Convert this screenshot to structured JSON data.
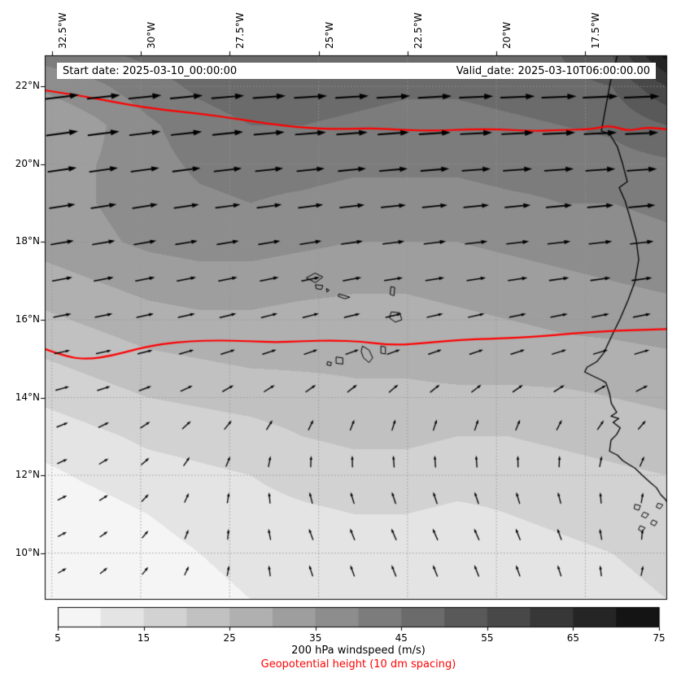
{
  "figure": {
    "annotations": {
      "start_date": "Start date: 2025-03-10_00:00:00",
      "valid_date": "Valid_date: 2025-03-10T06:00:00.00"
    }
  },
  "chart_data": {
    "type": "heatmap",
    "subtype": "filled-contour-windspeed-with-wind-vectors",
    "title": "",
    "x_label": "",
    "y_label": "",
    "map_extent": {
      "lon_min": -32.7,
      "lon_max": -15.2,
      "lat_min": 8.8,
      "lat_max": 22.8
    },
    "x_ticks": [
      {
        "value": -32.5,
        "label": "32.5°W"
      },
      {
        "value": -30.0,
        "label": "30°W"
      },
      {
        "value": -27.5,
        "label": "27.5°W"
      },
      {
        "value": -25.0,
        "label": "25°W"
      },
      {
        "value": -22.5,
        "label": "22.5°W"
      },
      {
        "value": -20.0,
        "label": "20°W"
      },
      {
        "value": -17.5,
        "label": "17.5°W"
      }
    ],
    "y_ticks": [
      {
        "value": 22,
        "label": "22°N"
      },
      {
        "value": 20,
        "label": "20°N"
      },
      {
        "value": 18,
        "label": "18°N"
      },
      {
        "value": 16,
        "label": "16°N"
      },
      {
        "value": 14,
        "label": "14°N"
      },
      {
        "value": 12,
        "label": "12°N"
      },
      {
        "value": 10,
        "label": "10°N"
      }
    ],
    "grid_lines": true,
    "colormap": {
      "name": "greys",
      "vmin": 5,
      "vmax": 75,
      "band_step": 5,
      "light_gray": 245,
      "dark_gray": 20
    },
    "colorbar": {
      "ticks": [
        5,
        15,
        25,
        35,
        45,
        55,
        65,
        75
      ],
      "label": "200 hPa windspeed (m/s)"
    },
    "windspeed_grid_mps": {
      "lons": [
        -32.7,
        -31.25,
        -29.8,
        -28.35,
        -26.9,
        -25.45,
        -24.0,
        -22.55,
        -21.1,
        -19.65,
        -18.2,
        -16.75,
        -15.2
      ],
      "lats": [
        8.8,
        10,
        11,
        12,
        13,
        14,
        15,
        16,
        17,
        18,
        19,
        20,
        21,
        22,
        22.8
      ],
      "values": [
        [
          5,
          6,
          7,
          9,
          10,
          11,
          12,
          12,
          11,
          12,
          13,
          14,
          15
        ],
        [
          6,
          7,
          8,
          10,
          11,
          12,
          13,
          13,
          12,
          13,
          14,
          15,
          16
        ],
        [
          7,
          8,
          10,
          12,
          13,
          14,
          15,
          15,
          14,
          15,
          16,
          17,
          18
        ],
        [
          9,
          11,
          13,
          14,
          15,
          17,
          18,
          18,
          17,
          17,
          18,
          19,
          20
        ],
        [
          12,
          14,
          16,
          17,
          18,
          20,
          21,
          21,
          20,
          20,
          21,
          22,
          23
        ],
        [
          16,
          18,
          20,
          21,
          22,
          23,
          24,
          24,
          24,
          24,
          24,
          25,
          26
        ],
        [
          20,
          22,
          24,
          25,
          26,
          26,
          26,
          26,
          27,
          27,
          28,
          28,
          29
        ],
        [
          24,
          26,
          28,
          29,
          29,
          28,
          28,
          28,
          29,
          30,
          31,
          32,
          33
        ],
        [
          28,
          30,
          32,
          33,
          33,
          32,
          31,
          31,
          32,
          33,
          34,
          35,
          36
        ],
        [
          32,
          34,
          36,
          37,
          37,
          36,
          35,
          35,
          35,
          36,
          37,
          38,
          39
        ],
        [
          33,
          35,
          37,
          39,
          40,
          39,
          38,
          38,
          38,
          39,
          40,
          40,
          41
        ],
        [
          32,
          35,
          38,
          41,
          42,
          42,
          41,
          41,
          41,
          42,
          42,
          43,
          44
        ],
        [
          30,
          34,
          39,
          43,
          45,
          45,
          44,
          43,
          43,
          44,
          45,
          46,
          50
        ],
        [
          36,
          39,
          43,
          46,
          48,
          48,
          47,
          46,
          46,
          47,
          48,
          50,
          60
        ],
        [
          42,
          44,
          46,
          48,
          50,
          50,
          49,
          48,
          48,
          49,
          50,
          55,
          72
        ]
      ]
    },
    "wind_uv_grid_mps": {
      "lons": [
        -33,
        -30.5,
        -28,
        -25.5,
        -23,
        -20.5,
        -18,
        -15.5
      ],
      "lats": [
        9,
        11,
        13,
        15,
        17,
        19,
        21,
        23
      ],
      "u": [
        [
          4,
          3,
          2,
          -2,
          -3,
          -3,
          -2,
          2
        ],
        [
          5,
          4,
          1,
          -3,
          -4,
          -4,
          -3,
          1
        ],
        [
          8,
          6,
          4,
          2,
          1,
          1,
          2,
          4
        ],
        [
          14,
          13,
          12,
          11,
          10,
          11,
          12,
          13
        ],
        [
          22,
          21,
          20,
          19,
          19,
          20,
          21,
          22
        ],
        [
          32,
          31,
          30,
          30,
          30,
          31,
          32,
          33
        ],
        [
          42,
          41,
          40,
          40,
          41,
          42,
          43,
          44
        ],
        [
          46,
          45,
          45,
          46,
          47,
          48,
          50,
          52
        ]
      ],
      "v": [
        [
          2,
          3,
          5,
          7,
          8,
          8,
          7,
          5
        ],
        [
          2,
          3,
          6,
          8,
          9,
          9,
          8,
          6
        ],
        [
          3,
          4,
          6,
          7,
          8,
          8,
          7,
          6
        ],
        [
          3,
          3,
          4,
          4,
          4,
          4,
          4,
          4
        ],
        [
          4,
          4,
          4,
          4,
          3,
          3,
          3,
          3
        ],
        [
          5,
          5,
          4,
          4,
          3,
          3,
          3,
          3
        ],
        [
          6,
          5,
          4,
          3,
          3,
          2,
          2,
          2
        ],
        [
          5,
          4,
          3,
          2,
          2,
          2,
          2,
          2
        ]
      ]
    },
    "quiver_points": {
      "lon_start": -32.2,
      "lon_step": 1.164,
      "cols": 15,
      "lat_start": 9.55,
      "lat_step": 0.937,
      "rows": 14
    },
    "geopotential_contours": {
      "color": "#ff0000",
      "label": "Geopotential height (10 dm spacing)",
      "lines": [
        [
          [
            -32.7,
            21.9
          ],
          [
            -31.6,
            21.75
          ],
          [
            -30.5,
            21.55
          ],
          [
            -29.4,
            21.4
          ],
          [
            -28.3,
            21.3
          ],
          [
            -27.2,
            21.15
          ],
          [
            -26.1,
            21.0
          ],
          [
            -25.3,
            20.93
          ],
          [
            -24.4,
            20.9
          ],
          [
            -23.5,
            20.93
          ],
          [
            -22.6,
            20.88
          ],
          [
            -21.7,
            20.86
          ],
          [
            -20.8,
            20.9
          ],
          [
            -19.9,
            20.9
          ],
          [
            -19.0,
            20.85
          ],
          [
            -18.1,
            20.88
          ],
          [
            -17.3,
            20.9
          ],
          [
            -16.8,
            21.0
          ],
          [
            -16.3,
            20.85
          ],
          [
            -15.8,
            20.95
          ],
          [
            -15.2,
            20.9
          ]
        ],
        [
          [
            -32.7,
            15.25
          ],
          [
            -32.1,
            15.05
          ],
          [
            -31.5,
            14.98
          ],
          [
            -30.8,
            15.08
          ],
          [
            -30.1,
            15.25
          ],
          [
            -29.4,
            15.38
          ],
          [
            -28.6,
            15.45
          ],
          [
            -27.8,
            15.47
          ],
          [
            -27.0,
            15.45
          ],
          [
            -26.2,
            15.42
          ],
          [
            -25.4,
            15.45
          ],
          [
            -24.6,
            15.47
          ],
          [
            -23.8,
            15.44
          ],
          [
            -23.0,
            15.35
          ],
          [
            -22.2,
            15.38
          ],
          [
            -21.4,
            15.46
          ],
          [
            -20.6,
            15.5
          ],
          [
            -19.8,
            15.52
          ],
          [
            -19.0,
            15.56
          ],
          [
            -18.2,
            15.62
          ],
          [
            -17.4,
            15.68
          ],
          [
            -16.6,
            15.72
          ],
          [
            -15.9,
            15.74
          ],
          [
            -15.2,
            15.76
          ]
        ]
      ]
    },
    "coastline_color": "#000000",
    "coastline": [
      [
        -16.6,
        22.8
      ],
      [
        -16.7,
        22.45
      ],
      [
        -16.8,
        22.1
      ],
      [
        -16.88,
        21.7
      ],
      [
        -16.98,
        21.2
      ],
      [
        -17.05,
        20.85
      ],
      [
        -16.82,
        20.78
      ],
      [
        -16.6,
        20.45
      ],
      [
        -16.45,
        20.0
      ],
      [
        -16.32,
        19.55
      ],
      [
        -16.55,
        19.4
      ],
      [
        -16.38,
        19.05
      ],
      [
        -16.22,
        18.55
      ],
      [
        -16.07,
        18.05
      ],
      [
        -16.0,
        17.55
      ],
      [
        -16.1,
        17.0
      ],
      [
        -16.3,
        16.5
      ],
      [
        -16.52,
        16.03
      ],
      [
        -16.75,
        15.6
      ],
      [
        -16.98,
        15.15
      ],
      [
        -17.18,
        14.92
      ],
      [
        -17.45,
        14.78
      ],
      [
        -17.52,
        14.66
      ],
      [
        -17.28,
        14.55
      ],
      [
        -17.05,
        14.45
      ],
      [
        -16.92,
        14.38
      ],
      [
        -16.82,
        14.1
      ],
      [
        -16.77,
        13.85
      ],
      [
        -16.62,
        13.62
      ],
      [
        -16.78,
        13.52
      ],
      [
        -16.56,
        13.46
      ],
      [
        -16.72,
        13.36
      ],
      [
        -16.52,
        13.22
      ],
      [
        -16.62,
        13.05
      ],
      [
        -16.78,
        12.9
      ],
      [
        -16.82,
        12.62
      ],
      [
        -16.6,
        12.52
      ],
      [
        -16.45,
        12.38
      ],
      [
        -16.28,
        12.28
      ],
      [
        -16.1,
        12.18
      ],
      [
        -15.9,
        12.0
      ],
      [
        -15.68,
        11.82
      ],
      [
        -15.5,
        11.68
      ],
      [
        -15.38,
        11.5
      ],
      [
        -15.25,
        11.38
      ],
      [
        -15.2,
        11.3
      ]
    ],
    "islands": [
      [
        [
          -25.34,
          17.08
        ],
        [
          -25.1,
          17.2
        ],
        [
          -24.88,
          17.1
        ],
        [
          -25.08,
          16.96
        ]
      ],
      [
        [
          -25.08,
          16.9
        ],
        [
          -24.88,
          16.88
        ],
        [
          -24.92,
          16.78
        ],
        [
          -25.06,
          16.8
        ]
      ],
      [
        [
          -24.77,
          16.8
        ],
        [
          -24.7,
          16.76
        ],
        [
          -24.76,
          16.72
        ]
      ],
      [
        [
          -24.42,
          16.66
        ],
        [
          -24.12,
          16.58
        ],
        [
          -24.26,
          16.54
        ],
        [
          -24.44,
          16.6
        ]
      ],
      [
        [
          -22.96,
          16.85
        ],
        [
          -22.86,
          16.83
        ],
        [
          -22.88,
          16.62
        ],
        [
          -22.98,
          16.65
        ]
      ],
      [
        [
          -22.95,
          16.2
        ],
        [
          -22.72,
          16.18
        ],
        [
          -22.66,
          16.0
        ],
        [
          -22.84,
          15.94
        ],
        [
          -23.0,
          16.04
        ]
      ],
      [
        [
          -23.24,
          15.32
        ],
        [
          -23.12,
          15.3
        ],
        [
          -23.12,
          15.12
        ],
        [
          -23.24,
          15.14
        ]
      ],
      [
        [
          -23.76,
          15.32
        ],
        [
          -23.58,
          15.22
        ],
        [
          -23.48,
          15.02
        ],
        [
          -23.58,
          14.9
        ],
        [
          -23.74,
          15.02
        ],
        [
          -23.8,
          15.18
        ]
      ],
      [
        [
          -24.5,
          15.04
        ],
        [
          -24.32,
          15.02
        ],
        [
          -24.32,
          14.86
        ],
        [
          -24.5,
          14.88
        ]
      ],
      [
        [
          -24.74,
          14.92
        ],
        [
          -24.64,
          14.9
        ],
        [
          -24.66,
          14.82
        ],
        [
          -24.76,
          14.84
        ]
      ],
      [
        [
          -16.1,
          11.25
        ],
        [
          -15.95,
          11.22
        ],
        [
          -16.0,
          11.1
        ],
        [
          -16.12,
          11.14
        ]
      ],
      [
        [
          -15.85,
          11.05
        ],
        [
          -15.72,
          11.0
        ],
        [
          -15.8,
          10.9
        ],
        [
          -15.92,
          10.95
        ]
      ],
      [
        [
          -15.6,
          10.85
        ],
        [
          -15.48,
          10.8
        ],
        [
          -15.55,
          10.7
        ],
        [
          -15.66,
          10.75
        ]
      ],
      [
        [
          -15.95,
          10.7
        ],
        [
          -15.82,
          10.65
        ],
        [
          -15.9,
          10.55
        ],
        [
          -16.0,
          10.6
        ]
      ],
      [
        [
          -15.45,
          11.28
        ],
        [
          -15.32,
          11.24
        ],
        [
          -15.4,
          11.14
        ],
        [
          -15.5,
          11.18
        ]
      ]
    ]
  }
}
